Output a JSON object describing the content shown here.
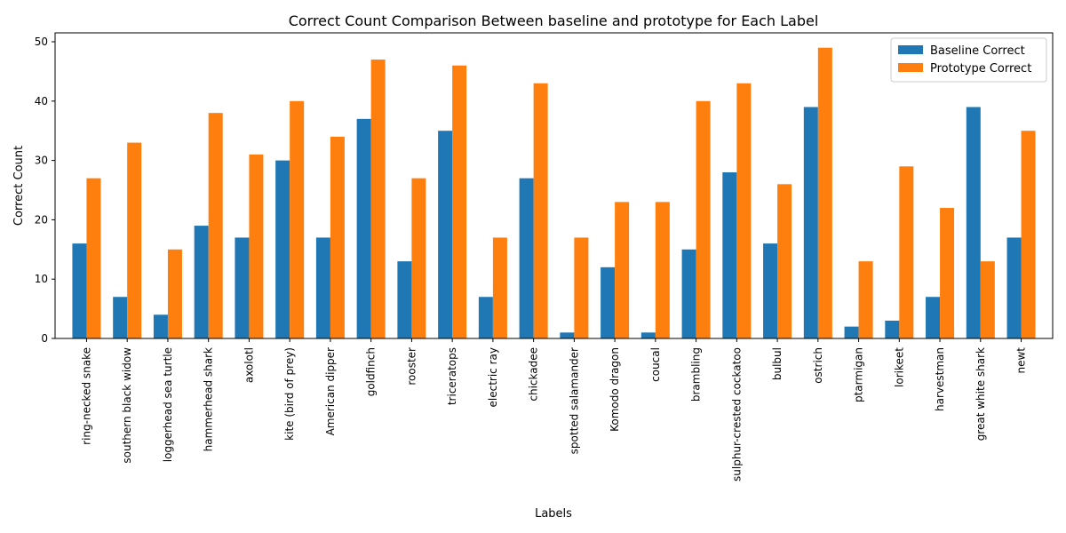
{
  "chart_data": {
    "type": "bar",
    "title": "Correct Count Comparison Between baseline and prototype for Each Label",
    "xlabel": "Labels",
    "ylabel": "Correct Count",
    "ylim": [
      0,
      51.5
    ],
    "yticks": [
      0,
      10,
      20,
      30,
      40,
      50
    ],
    "grid": false,
    "legend_position": "top-right",
    "categories": [
      "ring-necked snake",
      "southern black widow",
      "loggerhead sea turtle",
      "hammerhead shark",
      "axolotl",
      "kite (bird of prey)",
      "American dipper",
      "goldfinch",
      "rooster",
      "triceratops",
      "electric ray",
      "chickadee",
      "spotted salamander",
      "Komodo dragon",
      "coucal",
      "brambling",
      "sulphur-crested cockatoo",
      "bulbul",
      "ostrich",
      "ptarmigan",
      "lorikeet",
      "harvestman",
      "great white shark",
      "newt"
    ],
    "series": [
      {
        "name": "Baseline Correct",
        "color": "#1f77b4",
        "values": [
          16,
          7,
          4,
          19,
          17,
          30,
          17,
          37,
          13,
          35,
          7,
          27,
          1,
          12,
          1,
          15,
          28,
          16,
          39,
          2,
          3,
          7,
          39,
          17
        ]
      },
      {
        "name": "Prototype Correct",
        "color": "#ff7f0e",
        "values": [
          27,
          33,
          15,
          38,
          31,
          40,
          34,
          47,
          27,
          46,
          17,
          43,
          17,
          23,
          23,
          40,
          43,
          26,
          49,
          13,
          29,
          22,
          13,
          35
        ]
      }
    ]
  }
}
